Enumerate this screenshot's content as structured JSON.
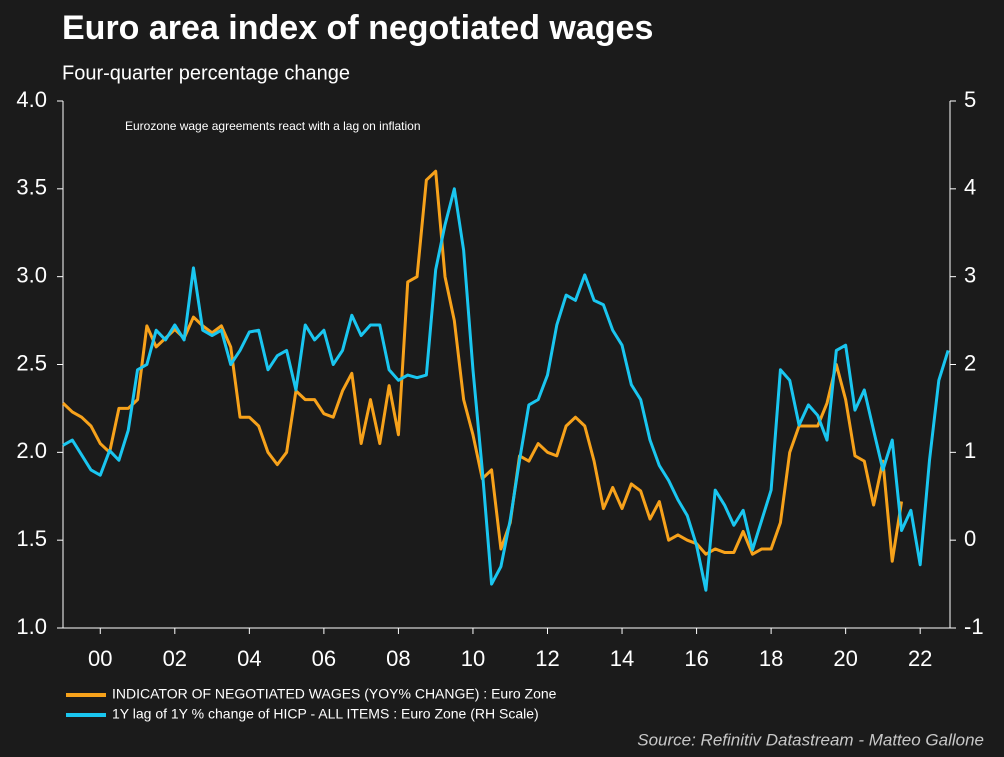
{
  "chart_data": {
    "type": "line",
    "title": "Euro area index of negotiated wages",
    "subtitle": "Four-quarter percentage change",
    "annotation": "Eurozone wage agreements react with a lag on inflation",
    "source": "Source: Refinitiv Datastream - Matteo Gallone",
    "xlim": [
      1999,
      2022.8
    ],
    "xticks": [
      {
        "value": 2000,
        "label": "00"
      },
      {
        "value": 2002,
        "label": "02"
      },
      {
        "value": 2004,
        "label": "04"
      },
      {
        "value": 2006,
        "label": "06"
      },
      {
        "value": 2008,
        "label": "08"
      },
      {
        "value": 2010,
        "label": "10"
      },
      {
        "value": 2012,
        "label": "12"
      },
      {
        "value": 2014,
        "label": "14"
      },
      {
        "value": 2016,
        "label": "16"
      },
      {
        "value": 2018,
        "label": "18"
      },
      {
        "value": 2020,
        "label": "20"
      },
      {
        "value": 2022,
        "label": "22"
      }
    ],
    "ylim": [
      1,
      4
    ],
    "yticks": [
      {
        "value": 1,
        "label": "1.0"
      },
      1.5,
      {
        "value": 2,
        "label": "2.0"
      },
      2.5,
      {
        "value": 3,
        "label": "3.0"
      },
      3.5,
      {
        "value": 4,
        "label": "4.0"
      }
    ],
    "y2lim": [
      -1,
      5
    ],
    "y2ticks": [
      -1,
      0,
      1,
      2,
      3,
      4,
      5
    ],
    "grid": false,
    "x": [
      1999,
      1999.25,
      1999.5,
      1999.75,
      2000,
      2000.25,
      2000.5,
      2000.75,
      2001,
      2001.25,
      2001.5,
      2001.75,
      2002,
      2002.25,
      2002.5,
      2002.75,
      2003,
      2003.25,
      2003.5,
      2003.75,
      2004,
      2004.25,
      2004.5,
      2004.75,
      2005,
      2005.25,
      2005.5,
      2005.75,
      2006,
      2006.25,
      2006.5,
      2006.75,
      2007,
      2007.25,
      2007.5,
      2007.75,
      2008,
      2008.25,
      2008.5,
      2008.75,
      2009,
      2009.25,
      2009.5,
      2009.75,
      2010,
      2010.25,
      2010.5,
      2010.75,
      2011,
      2011.25,
      2011.5,
      2011.75,
      2012,
      2012.25,
      2012.5,
      2012.75,
      2013,
      2013.25,
      2013.5,
      2013.75,
      2014,
      2014.25,
      2014.5,
      2014.75,
      2015,
      2015.25,
      2015.5,
      2015.75,
      2016,
      2016.25,
      2016.5,
      2016.75,
      2017,
      2017.25,
      2017.5,
      2017.75,
      2018,
      2018.25,
      2018.5,
      2018.75,
      2019,
      2019.25,
      2019.5,
      2019.75,
      2020,
      2020.25,
      2020.5,
      2020.75,
      2021,
      2021.25,
      2021.5,
      2021.75,
      2022,
      2022.25,
      2022.5,
      2022.75
    ],
    "series": [
      {
        "name": "INDICATOR OF NEGOTIATED WAGES (YOY% CHANGE) : Euro Zone",
        "color": "#f7a21b",
        "values": [
          2.28,
          2.23,
          2.2,
          2.15,
          2.05,
          2.0,
          2.25,
          2.25,
          2.3,
          2.72,
          2.6,
          2.65,
          2.7,
          2.65,
          2.77,
          2.72,
          2.68,
          2.72,
          2.6,
          2.2,
          2.2,
          2.15,
          2.0,
          1.93,
          2.0,
          2.35,
          2.3,
          2.3,
          2.22,
          2.2,
          2.35,
          2.45,
          2.05,
          2.3,
          2.05,
          2.38,
          2.1,
          2.97,
          3.0,
          3.55,
          3.6,
          3.0,
          2.75,
          2.3,
          2.1,
          1.85,
          1.9,
          1.45,
          1.6,
          1.98,
          1.95,
          2.05,
          2.0,
          1.98,
          2.15,
          2.2,
          2.15,
          1.95,
          1.68,
          1.8,
          1.68,
          1.82,
          1.78,
          1.62,
          1.72,
          1.5,
          1.53,
          1.5,
          1.48,
          1.42,
          1.45,
          1.43,
          1.43,
          1.55,
          1.42,
          1.45,
          1.45,
          1.6,
          2.0,
          2.15,
          2.15,
          2.15,
          2.28,
          2.5,
          2.3,
          1.98,
          1.95,
          1.7,
          1.95,
          1.38,
          1.72,
          null,
          null,
          null,
          null,
          null
        ]
      },
      {
        "name": "1Y lag of 1Y % change of HICP - ALL ITEMS : Euro Zone (RH Scale)",
        "color": "#1ac6f0",
        "axis": "y2",
        "values": [
          1.08,
          1.14,
          0.97,
          0.8,
          0.74,
          1.02,
          0.91,
          1.25,
          1.94,
          2.0,
          2.39,
          2.28,
          2.45,
          2.28,
          3.1,
          2.39,
          2.33,
          2.39,
          2.0,
          2.16,
          2.37,
          2.39,
          1.94,
          2.1,
          2.16,
          1.71,
          2.45,
          2.28,
          2.39,
          2.0,
          2.16,
          2.56,
          2.33,
          2.45,
          2.45,
          1.94,
          1.82,
          1.88,
          1.85,
          1.88,
          3.08,
          3.59,
          4.0,
          3.3,
          1.94,
          0.8,
          -0.5,
          -0.3,
          0.23,
          0.91,
          1.54,
          1.6,
          1.88,
          2.45,
          2.79,
          2.73,
          3.02,
          2.73,
          2.68,
          2.39,
          2.22,
          1.77,
          1.6,
          1.14,
          0.85,
          0.68,
          0.46,
          0.28,
          -0.06,
          -0.57,
          0.57,
          0.4,
          0.17,
          0.34,
          -0.11,
          0.23,
          0.57,
          1.94,
          1.82,
          1.31,
          1.54,
          1.42,
          1.14,
          2.16,
          2.22,
          1.48,
          1.71,
          1.25,
          0.8,
          1.14,
          0.11,
          0.34,
          -0.28,
          0.91,
          1.82,
          2.16
        ]
      }
    ]
  }
}
